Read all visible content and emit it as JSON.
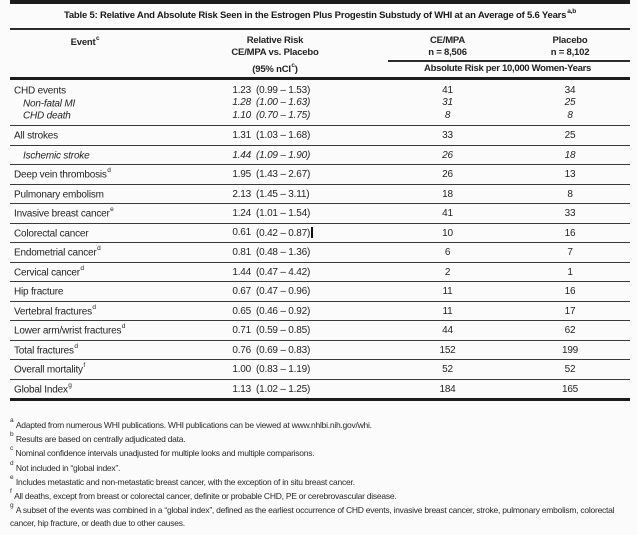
{
  "colors": {
    "ink": "#242424",
    "rule": "#1c1c1c",
    "background": "#fbfbfb"
  },
  "title": {
    "text": "Table 5: Relative And Absolute Risk Seen in the Estrogen Plus Progestin Substudy of WHI at an Average of 5.6 Years",
    "sup": "a,b"
  },
  "header": {
    "event_label": "Event",
    "event_sup": "c",
    "rr_line1": "Relative Risk",
    "rr_line2": "CE/MPA vs. Placebo",
    "nci_prefix": "(95% nCI",
    "nci_sup": "c",
    "nci_suffix": ")",
    "cempa_line1": "CE/MPA",
    "cempa_line2": "n = 8,506",
    "placebo_line1": "Placebo",
    "placebo_line2": "n = 8,102",
    "abs_label": "Absolute Risk per 10,000 Women-Years"
  },
  "table": {
    "rows": [
      {
        "label": "CHD events",
        "sup": "",
        "rr": "1.23",
        "ci": "(0.99 – 1.53)",
        "cempa": "41",
        "placebo": "34"
      },
      {
        "label": "Non-fatal MI",
        "sup": "",
        "rr": "1.28",
        "ci": "(1.00 – 1.63)",
        "cempa": "31",
        "placebo": "25"
      },
      {
        "label": "CHD death",
        "sup": "",
        "rr": "1.10",
        "ci": "(0.70 – 1.75)",
        "cempa": "8",
        "placebo": "8"
      },
      {
        "label": "All strokes",
        "sup": "",
        "rr": "1.31",
        "ci": "(1.03 – 1.68)",
        "cempa": "33",
        "placebo": "25"
      },
      {
        "label": "Ischemic stroke",
        "sup": "",
        "rr": "1.44",
        "ci": "(1.09 – 1.90)",
        "cempa": "26",
        "placebo": "18"
      },
      {
        "label": "Deep vein thrombosis",
        "sup": "d",
        "rr": "1.95",
        "ci": "(1.43 – 2.67)",
        "cempa": "26",
        "placebo": "13"
      },
      {
        "label": "Pulmonary embolism",
        "sup": "",
        "rr": "2.13",
        "ci": "(1.45 – 3.11)",
        "cempa": "18",
        "placebo": "8"
      },
      {
        "label": "Invasive breast cancer",
        "sup": "e",
        "rr": "1.24",
        "ci": "(1.01 – 1.54)",
        "cempa": "41",
        "placebo": "33"
      },
      {
        "label": "Colorectal cancer",
        "sup": "",
        "rr": "0.61",
        "ci": "(0.42 – 0.87)",
        "cempa": "10",
        "placebo": "16"
      },
      {
        "label": "Endometrial cancer",
        "sup": "d",
        "rr": "0.81",
        "ci": "(0.48 – 1.36)",
        "cempa": "6",
        "placebo": "7"
      },
      {
        "label": "Cervical cancer",
        "sup": "d",
        "rr": "1.44",
        "ci": "(0.47 – 4.42)",
        "cempa": "2",
        "placebo": "1"
      },
      {
        "label": "Hip fracture",
        "sup": "",
        "rr": "0.67",
        "ci": "(0.47 – 0.96)",
        "cempa": "11",
        "placebo": "16"
      },
      {
        "label": "Vertebral fractures",
        "sup": "d",
        "rr": "0.65",
        "ci": "(0.46 – 0.92)",
        "cempa": "11",
        "placebo": "17"
      },
      {
        "label": "Lower arm/wrist fractures",
        "sup": "d",
        "rr": "0.71",
        "ci": "(0.59 – 0.85)",
        "cempa": "44",
        "placebo": "62"
      },
      {
        "label": "Total fractures",
        "sup": "d",
        "rr": "0.76",
        "ci": "(0.69 – 0.83)",
        "cempa": "152",
        "placebo": "199"
      },
      {
        "label": "Overall mortality",
        "sup": "f",
        "rr": "1.00",
        "ci": "(0.83 – 1.19)",
        "cempa": "52",
        "placebo": "52"
      },
      {
        "label": "Global Index",
        "sup": "g",
        "rr": "1.13",
        "ci": "(1.02 – 1.25)",
        "cempa": "184",
        "placebo": "165"
      }
    ]
  },
  "footnotes": [
    {
      "sup": "a",
      "text": "Adapted from numerous WHI publications. WHI publications can be viewed at www.nhlbi.nih.gov/whi."
    },
    {
      "sup": "b",
      "text": "Results are based on centrally adjudicated data."
    },
    {
      "sup": "c",
      "text": "Nominal confidence intervals unadjusted for multiple looks and multiple comparisons."
    },
    {
      "sup": "d",
      "text": "Not included in “global index”."
    },
    {
      "sup": "e",
      "text": "Includes metastatic and non-metastatic breast cancer, with the exception of in situ breast cancer."
    },
    {
      "sup": "f",
      "text": "All deaths, except from breast or colorectal cancer, definite or probable CHD, PE or cerebrovascular disease."
    },
    {
      "sup": "g",
      "text": "A subset of the events was combined in a “global index”, defined as the earliest occurrence of CHD events, invasive breast cancer, stroke, pulmonary embolism, colorectal cancer, hip fracture, or death due to other causes."
    }
  ]
}
